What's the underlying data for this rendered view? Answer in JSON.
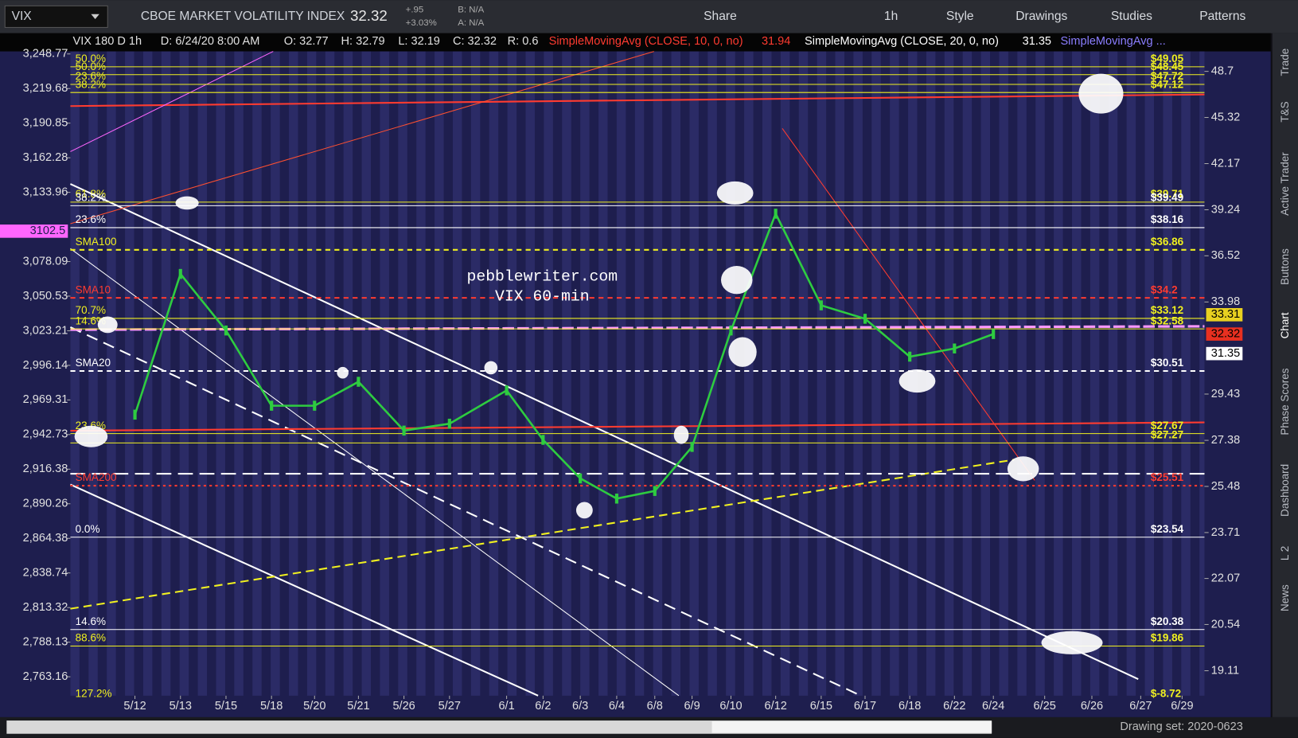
{
  "ui": {
    "toolbar": {
      "description": "CBOE MARKET VOLATILITY INDEX",
      "last": "32.32",
      "change": "+.95",
      "change_pct": "+3.03%",
      "bid": "B: N/A",
      "ask": "A: N/A",
      "buttons": [
        "Share",
        "1h",
        "Style",
        "Drawings",
        "Studies",
        "Patterns"
      ]
    },
    "header": {
      "items": [
        "VIX 180 D 1h",
        "D: 6/24/20 8:00 AM",
        "O: 32.77",
        "H: 32.79",
        "L: 32.19",
        "C: 32.32",
        "R: 0.6"
      ],
      "studies": [
        {
          "text": "SimpleMovingAvg (CLOSE, 10, 0, no)",
          "value": "31.94",
          "color": "#ff3b30"
        },
        {
          "text": "SimpleMovingAvg (CLOSE, 20, 0, no)",
          "value": "31.35",
          "color": "#ffffff"
        },
        {
          "text": "SimpleMovingAvg ...",
          "color": "#8a7dff"
        }
      ]
    },
    "side_tabs": [
      "Trade",
      "T&S",
      "Active Trader",
      "Buttons",
      "Chart",
      "Phase Scores",
      "Dashboard",
      "L 2",
      "News"
    ],
    "status": "Drawing set: 2020-0623"
  },
  "chart_data": {
    "type": "line",
    "title": "pebblewriter.com",
    "subtitle": "VIX 60-min",
    "log_scale": true,
    "categories": [
      "5/12",
      "5/13",
      "5/15",
      "5/18",
      "5/20",
      "5/21",
      "5/26",
      "5/27",
      "6/1",
      "6/2",
      "6/3",
      "6/4",
      "6/8",
      "6/9",
      "6/10",
      "6/12",
      "6/15",
      "6/17",
      "6/18",
      "6/22",
      "6/24",
      "6/25",
      "6/26",
      "6/27",
      "6/29"
    ],
    "series": [
      {
        "name": "VIX",
        "color": "#2ecc40",
        "values": [
          28.5,
          35.5,
          32.5,
          28.9,
          28.9,
          30.0,
          27.8,
          28.1,
          29.6,
          27.4,
          25.8,
          25.0,
          25.3,
          27.1,
          32.5,
          39.0,
          33.8,
          33.1,
          31.2,
          31.6,
          32.32,
          null,
          null,
          null,
          null
        ]
      }
    ],
    "ylim": [
      18.38,
      50.24
    ],
    "yticks": [
      48.7,
      45.32,
      42.17,
      39.24,
      36.52,
      33.98,
      29.43,
      27.38,
      25.48,
      23.71,
      22.07,
      20.54,
      19.11
    ],
    "y2lim": [
      2749.6,
      3250.9
    ],
    "y2ticks": [
      {
        "value": 3248.77,
        "label": "3,248.77"
      },
      {
        "value": 3219.68,
        "label": "3,219.68"
      },
      {
        "value": 3190.85,
        "label": "3,190.85"
      },
      {
        "value": 3162.28,
        "label": "3,162.28"
      },
      {
        "value": 3133.96,
        "label": "3,133.96"
      },
      {
        "value": 3078.09,
        "label": "3,078.09"
      },
      {
        "value": 3050.53,
        "label": "3,050.53"
      },
      {
        "value": 3023.21,
        "label": "3,023.21"
      },
      {
        "value": 2996.14,
        "label": "2,996.14"
      },
      {
        "value": 2969.31,
        "label": "2,969.31"
      },
      {
        "value": 2942.73,
        "label": "2,942.73"
      },
      {
        "value": 2916.38,
        "label": "2,916.38"
      },
      {
        "value": 2890.26,
        "label": "2,890.26"
      },
      {
        "value": 2864.38,
        "label": "2,864.38"
      },
      {
        "value": 2838.74,
        "label": "2,838.74"
      },
      {
        "value": 2813.32,
        "label": "2,813.32"
      },
      {
        "value": 2788.13,
        "label": "2,788.13"
      },
      {
        "value": 2763.16,
        "label": "2,763.16"
      }
    ],
    "levels": [
      {
        "label": "50.0%",
        "value": 49.05,
        "value_label": "$49.05",
        "color": "#f0f020",
        "style": "solid"
      },
      {
        "label": "50.0%",
        "value": 48.45,
        "value_label": "$48.45",
        "color": "#f0f020",
        "style": "solid"
      },
      {
        "label": "23.6%",
        "value": 47.72,
        "value_label": "$47.72",
        "color": "#f0f020",
        "style": "solid"
      },
      {
        "label": "38.2%",
        "value": 47.12,
        "value_label": "$47.12",
        "color": "#f0f020",
        "style": "solid"
      },
      {
        "label": "61.8%",
        "value": 39.71,
        "value_label": "$39.71",
        "color": "#f0f020",
        "style": "solid"
      },
      {
        "label": "38.2%",
        "value": 39.49,
        "value_label": "$39.49",
        "color": "#ffffff",
        "style": "solid"
      },
      {
        "label": "23.6%",
        "value": 38.16,
        "value_label": "$38.16",
        "color": "#ffffff",
        "style": "solid"
      },
      {
        "label": "SMA100",
        "value": 36.86,
        "value_label": "$36.86",
        "color": "#f0f020",
        "style": "dashed"
      },
      {
        "label": "SMA10",
        "value": 34.2,
        "value_label": "$34.2",
        "color": "#ff3b30",
        "style": "dashed"
      },
      {
        "label": "70.7%",
        "value": 33.12,
        "value_label": "$33.12",
        "color": "#f0f020",
        "style": "solid"
      },
      {
        "label": "14.6%",
        "value": 32.58,
        "value_label": "$32.58",
        "color": "#f0f020",
        "style": "solid"
      },
      {
        "label": "SMA20",
        "value": 30.51,
        "value_label": "$30.51",
        "color": "#ffffff",
        "style": "dashed"
      },
      {
        "label": "23.6%",
        "value": 27.67,
        "value_label": "$27.67",
        "color": "#f0f020",
        "style": "solid"
      },
      {
        "value": 27.27,
        "value_label": "$27.27",
        "color": "#f0f020",
        "style": "solid"
      },
      {
        "label": "SMA200",
        "value": 25.51,
        "value_label": "$25.51",
        "color": "#ff3b30",
        "style": "dotted"
      },
      {
        "label": "0.0%",
        "value": 23.54,
        "value_label": "$23.54",
        "color": "#ffffff",
        "style": "solid"
      },
      {
        "label": "14.6%",
        "value": 20.38,
        "value_label": "$20.38",
        "color": "#ffffff",
        "style": "solid"
      },
      {
        "label": "88.6%",
        "value": 19.86,
        "value_label": "$19.86",
        "color": "#f0f020",
        "style": "solid"
      },
      {
        "label": "127.2%",
        "value": -8.72,
        "value_label": "$-8.72",
        "color": "#f0f020",
        "style": "solid"
      }
    ],
    "price_markers": [
      {
        "value": 33.31,
        "color": "#e8d020"
      },
      {
        "value": 32.32,
        "color": "#e83020"
      },
      {
        "value": 31.35,
        "color": "#ffffff"
      },
      {
        "value": 3102.5,
        "color": "#ff66ff",
        "axis": "y2"
      }
    ]
  }
}
